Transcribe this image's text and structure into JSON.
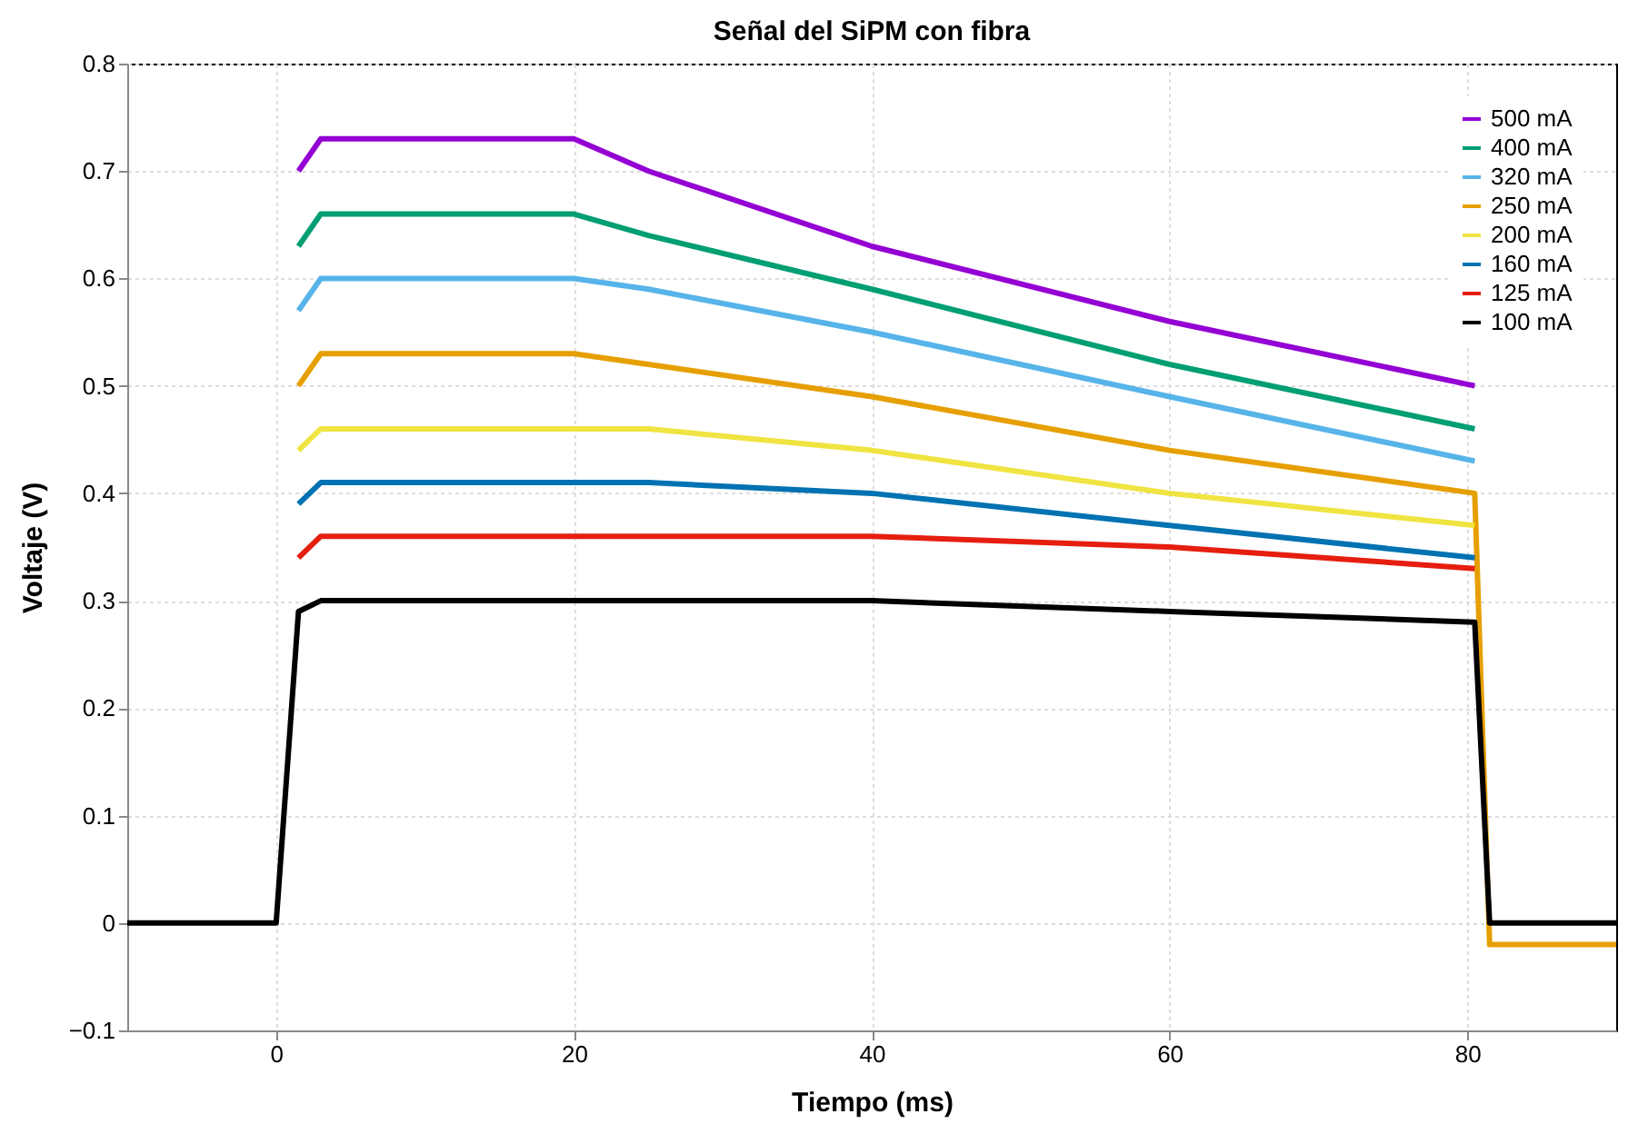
{
  "chart_data": {
    "type": "line",
    "title": "Señal del SiPM con fibra",
    "xlabel": "Tiempo  (ms)",
    "ylabel": "Voltaje (V)",
    "x": [
      -10,
      0,
      1.5,
      3,
      20,
      25,
      40,
      60,
      80.5,
      81.5,
      90
    ],
    "xlim": [
      -10,
      90
    ],
    "xticks": [
      0,
      20,
      40,
      60,
      80
    ],
    "ylim": [
      -0.1,
      0.8
    ],
    "yticks": [
      -0.1,
      0,
      0.1,
      0.2,
      0.3,
      0.4,
      0.5,
      0.6,
      0.7,
      0.8
    ],
    "grid": true,
    "line_style": "solid",
    "legend": "top right",
    "marker": "none",
    "series": [
      {
        "name": "500 mA",
        "color": "#9400d3",
        "values": [
          null,
          null,
          0.7,
          0.73,
          0.73,
          0.7,
          0.63,
          0.56,
          0.5,
          null,
          null
        ]
      },
      {
        "name": "400 mA",
        "color": "#009e73",
        "values": [
          null,
          null,
          0.63,
          0.66,
          0.66,
          0.64,
          0.59,
          0.52,
          0.46,
          null,
          null
        ]
      },
      {
        "name": "320 mA",
        "color": "#56b4e9",
        "values": [
          null,
          null,
          0.57,
          0.6,
          0.6,
          0.59,
          0.55,
          0.49,
          0.43,
          null,
          null
        ]
      },
      {
        "name": "250 mA",
        "color": "#e69f00",
        "values": [
          null,
          null,
          0.5,
          0.53,
          0.53,
          0.52,
          0.49,
          0.44,
          0.4,
          -0.02,
          -0.02
        ]
      },
      {
        "name": "200 mA",
        "color": "#f0e442",
        "values": [
          null,
          null,
          0.44,
          0.46,
          0.46,
          0.46,
          0.44,
          0.4,
          0.37,
          null,
          null
        ]
      },
      {
        "name": "160 mA",
        "color": "#0072b2",
        "values": [
          null,
          null,
          0.39,
          0.41,
          0.41,
          0.41,
          0.4,
          0.37,
          0.34,
          null,
          null
        ]
      },
      {
        "name": "125 mA",
        "color": "#e51e10",
        "values": [
          null,
          null,
          0.34,
          0.36,
          0.36,
          0.36,
          0.36,
          0.35,
          0.33,
          null,
          null
        ]
      },
      {
        "name": "100 mA",
        "color": "#000000",
        "values": [
          0,
          0,
          0.29,
          0.3,
          0.3,
          0.3,
          0.3,
          0.29,
          0.28,
          0,
          0
        ]
      }
    ]
  }
}
